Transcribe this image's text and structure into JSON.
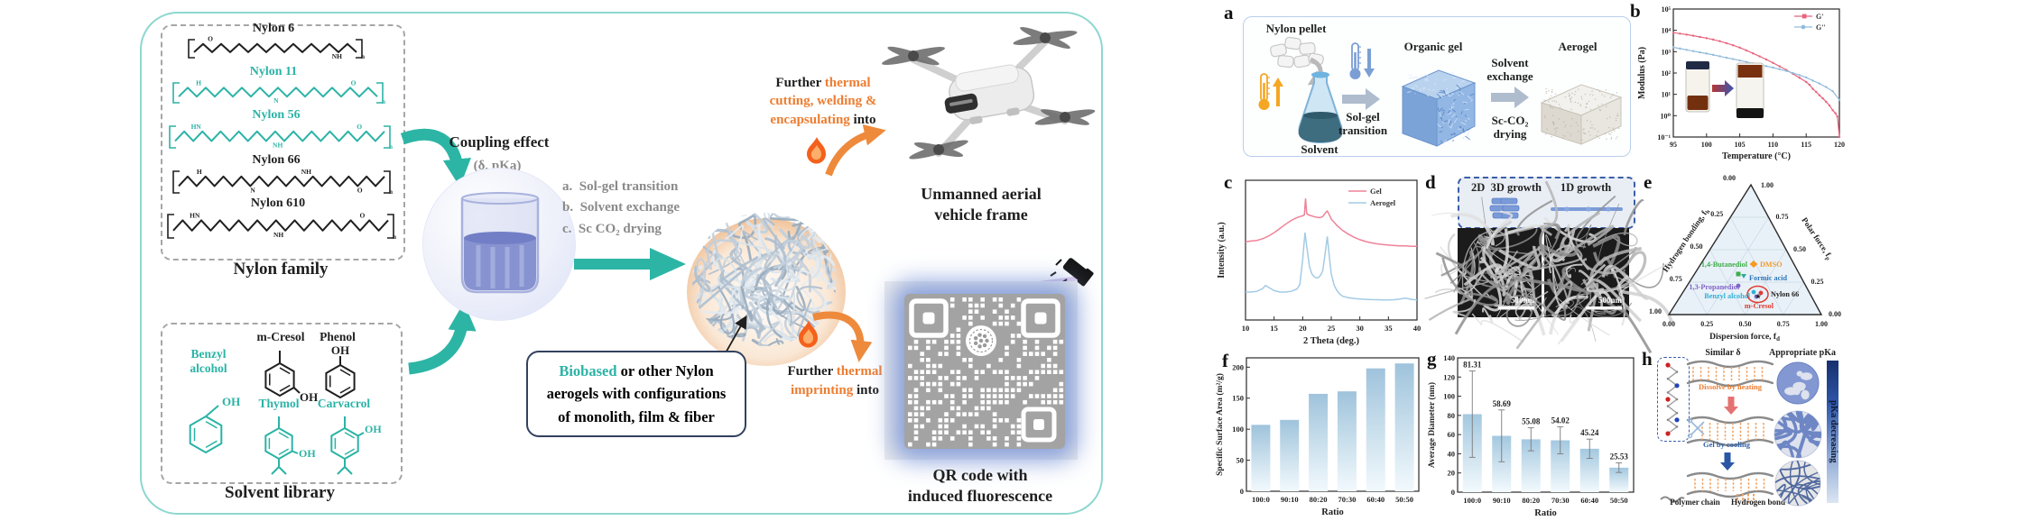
{
  "ga": {
    "nylon_family": {
      "label": "Nylon family",
      "bracket_sub": "n",
      "items": [
        {
          "name": "Nylon 6",
          "color": "#1f1f1f",
          "atoms": [
            "O",
            "NH"
          ]
        },
        {
          "name": "Nylon 11",
          "color": "#2bb3a6",
          "atoms": [
            "H",
            "N",
            "O"
          ]
        },
        {
          "name": "Nylon 56",
          "color": "#2bb3a6",
          "atoms": [
            "HN",
            "NH",
            "O"
          ]
        },
        {
          "name": "Nylon 66",
          "color": "#1f1f1f",
          "atoms": [
            "H",
            "N",
            "NH",
            "O"
          ]
        },
        {
          "name": "Nylon 610",
          "color": "#1f1f1f",
          "atoms": [
            "HN",
            "NH",
            "O"
          ]
        }
      ]
    },
    "solvent_library": {
      "label": "Solvent library",
      "oh": "OH",
      "items": [
        {
          "name": "Benzyl alcohol",
          "line1": "Benzyl",
          "line2": "alcohol",
          "color": "#2bb3a6"
        },
        {
          "name": "m-Cresol",
          "color": "#1f1f1f"
        },
        {
          "name": "Phenol",
          "color": "#1f1f1f"
        },
        {
          "name": "Thymol",
          "color": "#2bb3a6"
        },
        {
          "name": "Carvacrol",
          "color": "#2bb3a6"
        }
      ]
    },
    "coupling": {
      "title": "Coupling effect",
      "subtitle": "(δ, pKa)"
    },
    "steps": [
      "a.  Sol-gel transition",
      "b.  Solvent exchange",
      "c.  Sc CO₂ drying"
    ],
    "biobased": {
      "hl": "Biobased",
      "l1": " or other Nylon",
      "l2": "aerogels with configurations",
      "l3": "of monolith, film & fiber"
    },
    "uav": {
      "a1": "Further ",
      "a1o": "thermal",
      "a2o": "cutting, welding &",
      "a3o": "encapsulating",
      "a3": " into",
      "c1": "Unmanned aerial",
      "c2": "vehicle frame"
    },
    "qr": {
      "a1": "Further ",
      "a1o": "thermal",
      "a2o": "imprinting",
      "a2": " into",
      "uv": "UV",
      "c1": "QR code with",
      "c2": "induced fluorescence"
    }
  },
  "panels": {
    "a": {
      "label": "a",
      "pellet": "Nylon pellet",
      "solvent": "Solvent",
      "arrow1a": "Sol-gel",
      "arrow1b": "transition",
      "gel": "Organic gel",
      "ex1": "Solvent",
      "ex2": "exchange",
      "sc1": "Sc-CO₂",
      "sc2": "drying",
      "aerogel": "Aerogel"
    },
    "b": {
      "label": "b"
    },
    "c": {
      "label": "c"
    },
    "d": {
      "label": "d",
      "g23": "2D  3D growth",
      "g1": "1D growth",
      "scalebar": "500nm"
    },
    "e": {
      "label": "e",
      "axis_left": "Hydrogen bonding, f",
      "axis_left_sub": "h",
      "axis_right": "Polar force, f",
      "axis_right_sub": "p",
      "axis_bottom": "Dispersion force, f",
      "axis_bottom_sub": "d",
      "apex_left": "0.00",
      "apex_right": "1.00",
      "left_ticks": [
        "0.25",
        "0.50",
        "0.75",
        "1.00"
      ],
      "right_ticks": [
        "0.75",
        "0.50",
        "0.25",
        "0.00"
      ],
      "bottom_ticks": [
        "0.00",
        "0.25",
        "0.50",
        "0.75",
        "1.00"
      ],
      "points": [
        {
          "name": "1,4-Butanediol",
          "color": "#3fae49"
        },
        {
          "name": "DMSO",
          "color": "#f59a23"
        },
        {
          "name": "Formic acid",
          "color": "#2e75b6"
        },
        {
          "name": "1,3-Propanediol",
          "color": "#8064c8"
        },
        {
          "name": "Benzyl alcohol",
          "color": "#31b0d5"
        },
        {
          "name": "Nylon 66",
          "color": "#1f1f1f"
        },
        {
          "name": "m-Cresol",
          "color": "#e03c31"
        }
      ]
    },
    "h": {
      "label": "h",
      "similar": "Similar δ",
      "appropriate": "Appropriate pKa",
      "dissolve": "Dissolve by heating",
      "gelcool": "Gel by cooling",
      "legend1": "Polymer chain",
      "legend2": "Hydrogen bond",
      "bar": "pKa decreasing"
    }
  },
  "chart_data": [
    {
      "id": "b",
      "type": "line",
      "xlabel": "Temperature (°C)",
      "ylabel": "Modulus (Pa)",
      "xlim": [
        95,
        120
      ],
      "x_ticks": [
        95,
        100,
        105,
        110,
        115,
        120
      ],
      "y_log_ticks": [
        "10⁻¹",
        "10⁰",
        "10¹",
        "10²",
        "10³",
        "10⁴",
        "10⁵"
      ],
      "ylim_log_exp": [
        -1,
        5
      ],
      "legend_position": "top-right",
      "grid": false,
      "series": [
        {
          "name": "G'",
          "color": "#e8647e",
          "points": [
            [
              95,
              7800
            ],
            [
              96,
              7000
            ],
            [
              97,
              6300
            ],
            [
              98,
              5600
            ],
            [
              99,
              4900
            ],
            [
              100,
              4300
            ],
            [
              101,
              3700
            ],
            [
              102,
              3100
            ],
            [
              103,
              2500
            ],
            [
              104,
              2000
            ],
            [
              105,
              1550
            ],
            [
              106,
              1150
            ],
            [
              107,
              830
            ],
            [
              108,
              600
            ],
            [
              109,
              430
            ],
            [
              110,
              300
            ],
            [
              111,
              205
            ],
            [
              112,
              140
            ],
            [
              113,
              92
            ],
            [
              114,
              60
            ],
            [
              115,
              38
            ],
            [
              115.5,
              28
            ],
            [
              116,
              18
            ],
            [
              116.5,
              13
            ],
            [
              117,
              9
            ],
            [
              117.5,
              6.5
            ],
            [
              118,
              4.5
            ],
            [
              118.5,
              3
            ],
            [
              119,
              1.8
            ],
            [
              119.4,
              1.3
            ],
            [
              119.7,
              0.9
            ],
            [
              120,
              0.1
            ]
          ]
        },
        {
          "name": "G''",
          "color": "#92bcdc",
          "points": [
            [
              95,
              1600
            ],
            [
              96,
              1400
            ],
            [
              97,
              1220
            ],
            [
              98,
              1060
            ],
            [
              99,
              930
            ],
            [
              100,
              820
            ],
            [
              101,
              710
            ],
            [
              102,
              610
            ],
            [
              103,
              520
            ],
            [
              104,
              450
            ],
            [
              105,
              385
            ],
            [
              106,
              330
            ],
            [
              107,
              285
            ],
            [
              108,
              245
            ],
            [
              109,
              210
            ],
            [
              110,
              180
            ],
            [
              111,
              150
            ],
            [
              112,
              125
            ],
            [
              113,
              100
            ],
            [
              114,
              80
            ],
            [
              115,
              62
            ],
            [
              116,
              44
            ],
            [
              117,
              32
            ],
            [
              118,
              22
            ],
            [
              119,
              14
            ],
            [
              120,
              5.5
            ]
          ]
        }
      ]
    },
    {
      "id": "c",
      "type": "line",
      "xlabel": "2 Theta (deg.)",
      "ylabel": "Intensity (a.u.)",
      "xlim": [
        10,
        40
      ],
      "x_ticks": [
        10,
        15,
        20,
        25,
        30,
        35,
        40
      ],
      "ylim": [
        0,
        1
      ],
      "grid": false,
      "legend_position": "top-right",
      "series": [
        {
          "name": "Gel",
          "color": "#ef8299",
          "points": [
            [
              10,
              0.56
            ],
            [
              11,
              0.565
            ],
            [
              12,
              0.57
            ],
            [
              13,
              0.582
            ],
            [
              14,
              0.6
            ],
            [
              15,
              0.625
            ],
            [
              16,
              0.655
            ],
            [
              17,
              0.685
            ],
            [
              18,
              0.713
            ],
            [
              19,
              0.733
            ],
            [
              19.5,
              0.74
            ],
            [
              20,
              0.746
            ],
            [
              20.3,
              0.752
            ],
            [
              20.5,
              0.87
            ],
            [
              20.7,
              0.762
            ],
            [
              21,
              0.752
            ],
            [
              21.5,
              0.746
            ],
            [
              22,
              0.74
            ],
            [
              22.5,
              0.735
            ],
            [
              23,
              0.732
            ],
            [
              23.5,
              0.74
            ],
            [
              24,
              0.768
            ],
            [
              24.3,
              0.78
            ],
            [
              24.7,
              0.75
            ],
            [
              25,
              0.722
            ],
            [
              25.5,
              0.7
            ],
            [
              26,
              0.676
            ],
            [
              27,
              0.64
            ],
            [
              28,
              0.614
            ],
            [
              29,
              0.592
            ],
            [
              30,
              0.575
            ],
            [
              31,
              0.562
            ],
            [
              32,
              0.552
            ],
            [
              33,
              0.545
            ],
            [
              34,
              0.54
            ],
            [
              35,
              0.536
            ],
            [
              36,
              0.533
            ],
            [
              37,
              0.53
            ],
            [
              38,
              0.53
            ],
            [
              39,
              0.528
            ],
            [
              40,
              0.527
            ]
          ]
        },
        {
          "name": "Aerogel",
          "color": "#a3cbe5",
          "points": [
            [
              10,
              0.2
            ],
            [
              11,
              0.2
            ],
            [
              12,
              0.205
            ],
            [
              13,
              0.225
            ],
            [
              13.5,
              0.247
            ],
            [
              14,
              0.235
            ],
            [
              15,
              0.21
            ],
            [
              16,
              0.2
            ],
            [
              17,
              0.2
            ],
            [
              18,
              0.205
            ],
            [
              19,
              0.222
            ],
            [
              19.5,
              0.255
            ],
            [
              20,
              0.43
            ],
            [
              20.4,
              0.625
            ],
            [
              20.8,
              0.5
            ],
            [
              21.2,
              0.38
            ],
            [
              21.6,
              0.33
            ],
            [
              22,
              0.31
            ],
            [
              22.5,
              0.3
            ],
            [
              23,
              0.312
            ],
            [
              23.5,
              0.35
            ],
            [
              24,
              0.5
            ],
            [
              24.3,
              0.598
            ],
            [
              24.7,
              0.44
            ],
            [
              25,
              0.33
            ],
            [
              25.5,
              0.25
            ],
            [
              26,
              0.21
            ],
            [
              26.5,
              0.185
            ],
            [
              27,
              0.17
            ],
            [
              28,
              0.16
            ],
            [
              29,
              0.154
            ],
            [
              30,
              0.15
            ],
            [
              31,
              0.148
            ],
            [
              32,
              0.146
            ],
            [
              33,
              0.145
            ],
            [
              34,
              0.144
            ],
            [
              35,
              0.143
            ],
            [
              36,
              0.145
            ],
            [
              37,
              0.15
            ],
            [
              38,
              0.156
            ],
            [
              39,
              0.148
            ],
            [
              40,
              0.144
            ]
          ]
        }
      ]
    },
    {
      "id": "f",
      "type": "bar",
      "xlabel": "Ratio",
      "ylabel": "Specific Surface Area (m²/g)",
      "categories": [
        "100:0",
        "90:10",
        "80:20",
        "70:30",
        "60:40",
        "50:50"
      ],
      "values": [
        107,
        115,
        157,
        161,
        198,
        206
      ],
      "ylim": [
        0,
        215
      ],
      "y_ticks": [
        0,
        50,
        100,
        150,
        200
      ],
      "grid": false
    },
    {
      "id": "g",
      "type": "bar",
      "xlabel": "Ratio",
      "ylabel": "Average Diameter (nm)",
      "categories": [
        "100:0",
        "90:10",
        "80:20",
        "70:30",
        "60:40",
        "50:50"
      ],
      "values": [
        81.31,
        58.69,
        55.08,
        54.02,
        45.24,
        25.53
      ],
      "value_labels": [
        "81.31",
        "58.69",
        "55.08",
        "54.02",
        "45.24",
        "25.53"
      ],
      "errors": [
        45,
        27,
        12,
        14,
        10,
        5
      ],
      "ylim": [
        0,
        140
      ],
      "y_ticks": [
        0,
        20,
        40,
        60,
        80,
        100,
        120,
        140
      ],
      "grid": false
    }
  ]
}
